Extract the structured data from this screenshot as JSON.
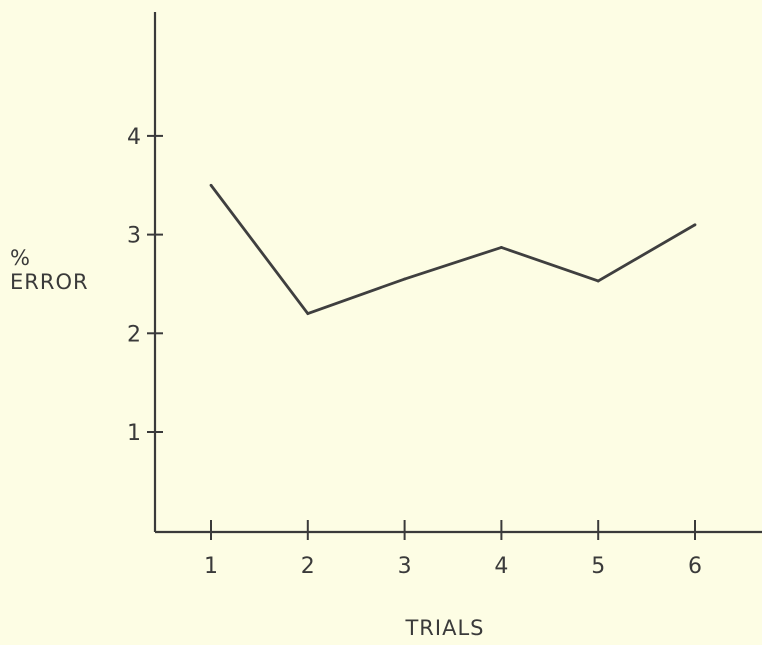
{
  "chart_data": {
    "type": "line",
    "title": "",
    "xlabel": "TRIALS",
    "ylabel_lines": [
      "%",
      "ERROR"
    ],
    "x": [
      1,
      2,
      3,
      4,
      5,
      6
    ],
    "x_tick_labels": [
      "1",
      "2",
      "3",
      "4",
      "5",
      "6"
    ],
    "y_ticks": [
      1,
      2,
      3,
      4
    ],
    "y_tick_labels": [
      "1",
      "2",
      "3",
      "4"
    ],
    "series": [
      {
        "values": [
          3.5,
          2.2,
          2.55,
          2.87,
          2.53,
          3.1
        ]
      }
    ],
    "xlim": [
      0.5,
      6.5
    ],
    "ylim": [
      0,
      5
    ],
    "grid": false,
    "legend": "none",
    "colors": {
      "background": "#fdfde4",
      "ink": "#3a3a3a"
    }
  }
}
